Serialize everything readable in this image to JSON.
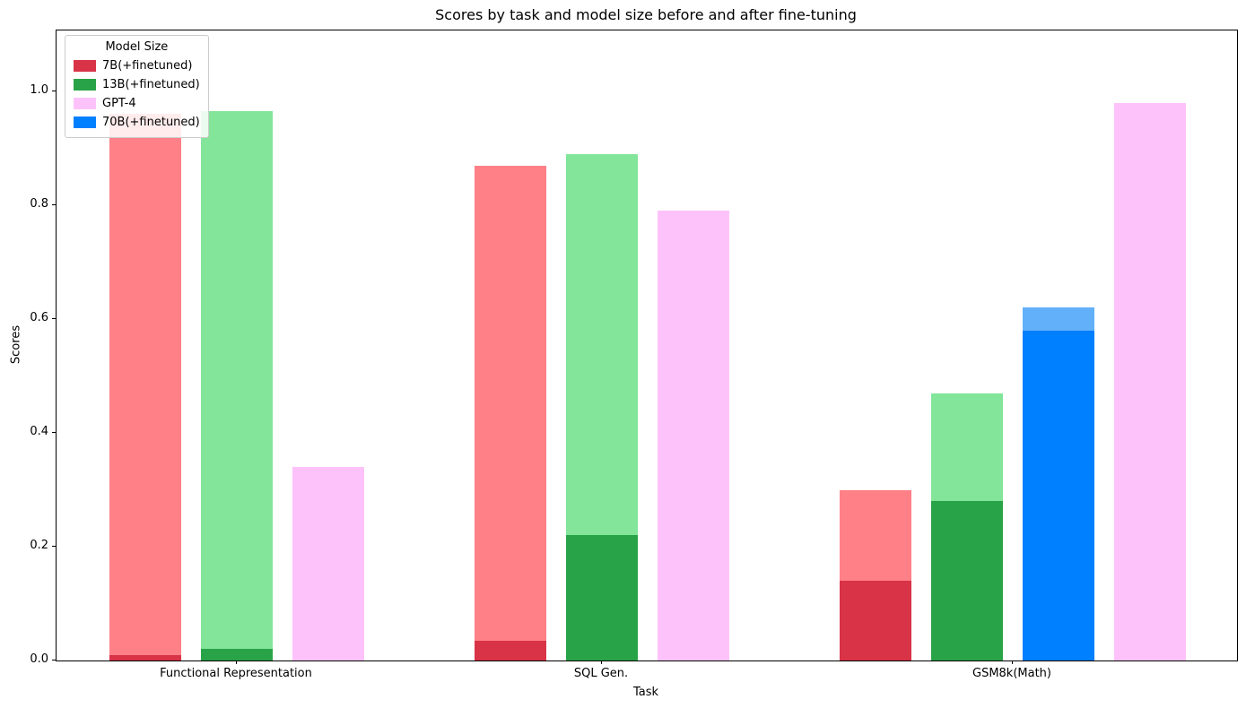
{
  "chart_data": {
    "type": "bar",
    "title": "Scores by task and model size before and after fine-tuning",
    "xlabel": "Task",
    "ylabel": "Scores",
    "ylim": [
      0,
      1.107
    ],
    "yticks": [
      0.0,
      0.2,
      0.4,
      0.6,
      0.8,
      1.0
    ],
    "grid": false,
    "legend": {
      "title": "Model Size",
      "position": "upper-left",
      "entries": [
        {
          "label": "7B(+finetuned)",
          "model": "7B"
        },
        {
          "label": "13B(+finetuned)",
          "model": "13B"
        },
        {
          "label": "GPT-4",
          "model": "GPT-4"
        },
        {
          "label": "70B(+finetuned)",
          "model": "70B"
        }
      ]
    },
    "palette": {
      "7B": {
        "solid": "#d93347",
        "light": "#ff8087"
      },
      "13B": {
        "solid": "#29a347",
        "light": "#82e59a"
      },
      "70B": {
        "solid": "#007fff",
        "light": "#63b0fa"
      },
      "GPT-4": {
        "solid": "#fec2fa",
        "light": "#fec2fa"
      }
    },
    "series_semantics": "base = score before fine-tuning (solid segment); total = score after fine-tuning (light segment top); GPT-4 has a single score",
    "groups": [
      {
        "task": "Functional Representation",
        "bars": [
          {
            "model": "7B",
            "base": 0.01,
            "total": 0.96
          },
          {
            "model": "13B",
            "base": 0.02,
            "total": 0.965
          },
          {
            "model": "GPT-4",
            "base": null,
            "total": 0.34
          }
        ]
      },
      {
        "task": "SQL Gen.",
        "bars": [
          {
            "model": "7B",
            "base": 0.035,
            "total": 0.87
          },
          {
            "model": "13B",
            "base": 0.22,
            "total": 0.89
          },
          {
            "model": "GPT-4",
            "base": null,
            "total": 0.79
          }
        ]
      },
      {
        "task": "GSM8k(Math)",
        "bars": [
          {
            "model": "7B",
            "base": 0.14,
            "total": 0.3
          },
          {
            "model": "13B",
            "base": 0.28,
            "total": 0.47
          },
          {
            "model": "70B",
            "base": 0.58,
            "total": 0.62
          },
          {
            "model": "GPT-4",
            "base": null,
            "total": 0.98
          }
        ]
      }
    ]
  }
}
